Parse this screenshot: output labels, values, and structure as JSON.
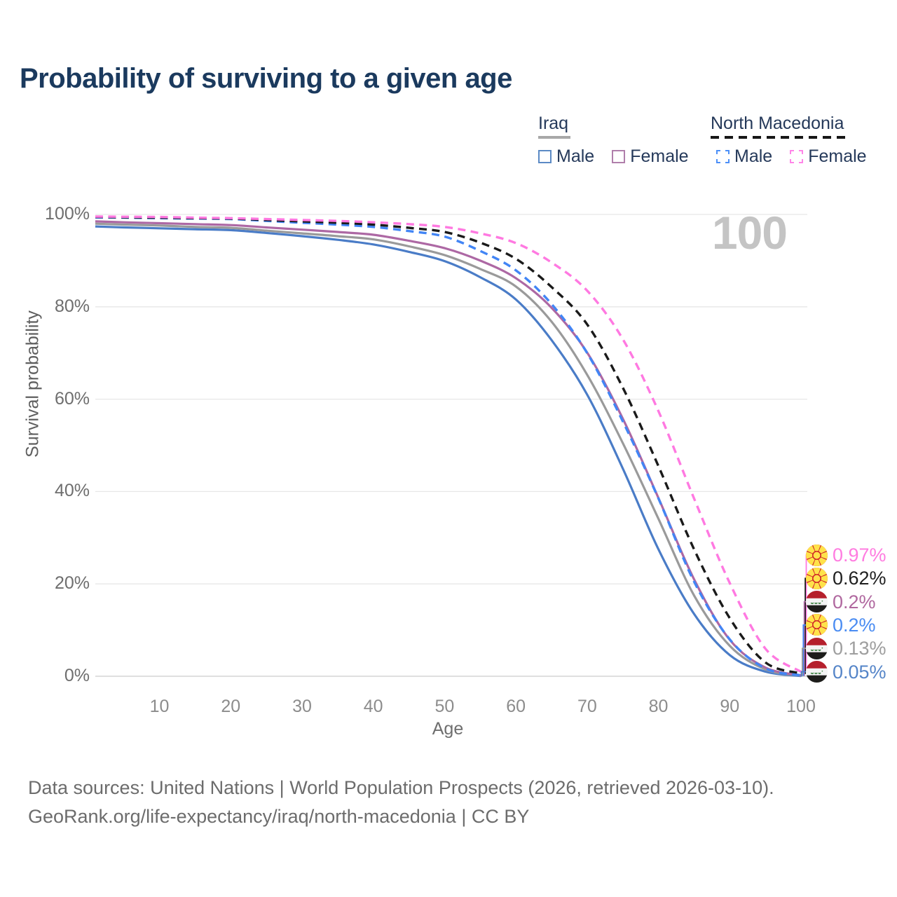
{
  "page": {
    "title": "Probability of surviving to a given age"
  },
  "watermark": "100",
  "legend": {
    "groups": [
      {
        "title": "Iraq",
        "underline_style": "solid",
        "underline_color": "#a8a8a8",
        "items": [
          {
            "label": "Male",
            "swatch_color": "#5b8ac5",
            "swatch_style": "solid"
          },
          {
            "label": "Female",
            "swatch_color": "#b07fab",
            "swatch_style": "solid"
          }
        ]
      },
      {
        "title": "North Macedonia",
        "underline_style": "dashed",
        "underline_color": "#161616",
        "items": [
          {
            "label": "Male",
            "swatch_color": "#4d90f8",
            "swatch_style": "dashed"
          },
          {
            "label": "Female",
            "swatch_color": "#ff85e8",
            "swatch_style": "dashed"
          }
        ]
      }
    ]
  },
  "chart_data": {
    "type": "line",
    "title": "Probability of surviving to a given age",
    "xlabel": "Age",
    "ylabel": "Survival probability",
    "xlim": [
      1,
      100
    ],
    "ylim": [
      0,
      100
    ],
    "x_ticks": [
      10,
      20,
      30,
      40,
      50,
      60,
      70,
      80,
      90,
      100
    ],
    "y_ticks": [
      0,
      20,
      40,
      60,
      80,
      100
    ],
    "y_tick_suffix": "%",
    "grid": "horizontal",
    "legend_position": "top-right",
    "x": [
      1,
      5,
      10,
      15,
      20,
      25,
      30,
      35,
      40,
      45,
      50,
      55,
      60,
      65,
      70,
      75,
      80,
      85,
      90,
      95,
      100
    ],
    "series": [
      {
        "name": "Iraq Male",
        "color": "#4a7cc7",
        "dash": "solid",
        "values": [
          97.4,
          97.2,
          97.0,
          96.8,
          96.6,
          96.0,
          95.3,
          94.5,
          93.5,
          91.9,
          89.9,
          86.4,
          81.6,
          72.8,
          61.0,
          45.0,
          27.5,
          13.5,
          4.6,
          1.0,
          0.05
        ]
      },
      {
        "name": "Iraq Both",
        "color": "#9a9a9a",
        "dash": "solid",
        "values": [
          98.0,
          97.8,
          97.6,
          97.3,
          97.1,
          96.5,
          95.9,
          95.3,
          94.6,
          93.1,
          91.2,
          88.2,
          84.4,
          76.8,
          65.3,
          50.5,
          34.1,
          17.5,
          6.6,
          1.5,
          0.13
        ]
      },
      {
        "name": "Iraq Female",
        "color": "#ad68a4",
        "dash": "solid",
        "values": [
          98.5,
          98.3,
          98.1,
          97.9,
          97.7,
          97.2,
          96.7,
          96.2,
          95.6,
          94.3,
          92.7,
          90.0,
          86.2,
          79.8,
          70.1,
          55.8,
          38.6,
          21.0,
          7.9,
          1.9,
          0.2
        ]
      },
      {
        "name": "North Macedonia Male",
        "color": "#4285f5",
        "dash": "dashed",
        "values": [
          99.35,
          99.3,
          99.2,
          99.1,
          99.0,
          98.6,
          98.2,
          97.8,
          97.3,
          96.4,
          95.2,
          92.1,
          87.9,
          80.6,
          70.0,
          55.2,
          38.5,
          20.5,
          8.0,
          1.7,
          0.2
        ]
      },
      {
        "name": "North Macedonia Both",
        "color": "#1a1a1a",
        "dash": "dashed",
        "values": [
          99.45,
          99.4,
          99.3,
          99.2,
          99.1,
          98.8,
          98.5,
          98.2,
          97.8,
          97.1,
          96.2,
          93.9,
          90.4,
          84.3,
          76.2,
          62.5,
          45.5,
          27.5,
          12.6,
          3.0,
          0.62
        ]
      },
      {
        "name": "North Macedonia Female",
        "color": "#ff79e1",
        "dash": "dashed",
        "values": [
          99.55,
          99.5,
          99.45,
          99.3,
          99.2,
          99.0,
          98.8,
          98.6,
          98.3,
          97.9,
          97.3,
          95.9,
          93.8,
          89.6,
          83.5,
          73.0,
          57.4,
          38.5,
          20.2,
          6.0,
          0.97
        ]
      }
    ]
  },
  "end_labels": [
    {
      "series": "North Macedonia Female",
      "flag": "north-macedonia",
      "text": "0.97%",
      "color": "#ff7ce0"
    },
    {
      "series": "North Macedonia Both",
      "flag": "north-macedonia",
      "text": "0.62%",
      "color": "#1f1f1f"
    },
    {
      "series": "Iraq Female",
      "flag": "iraq",
      "text": "0.2%",
      "color": "#b0689f"
    },
    {
      "series": "North Macedonia Male",
      "flag": "north-macedonia",
      "text": "0.2%",
      "color": "#4a8cf2"
    },
    {
      "series": "Iraq Both",
      "flag": "iraq",
      "text": "0.13%",
      "color": "#9e9e9e"
    },
    {
      "series": "Iraq Male",
      "flag": "iraq",
      "text": "0.05%",
      "color": "#5585c8"
    }
  ],
  "footer": {
    "line1": "Data sources: United Nations | World Population Prospects (2026, retrieved 2026-03-10).",
    "line2": "GeoRank.org/life-expectancy/iraq/north-macedonia | CC BY"
  }
}
